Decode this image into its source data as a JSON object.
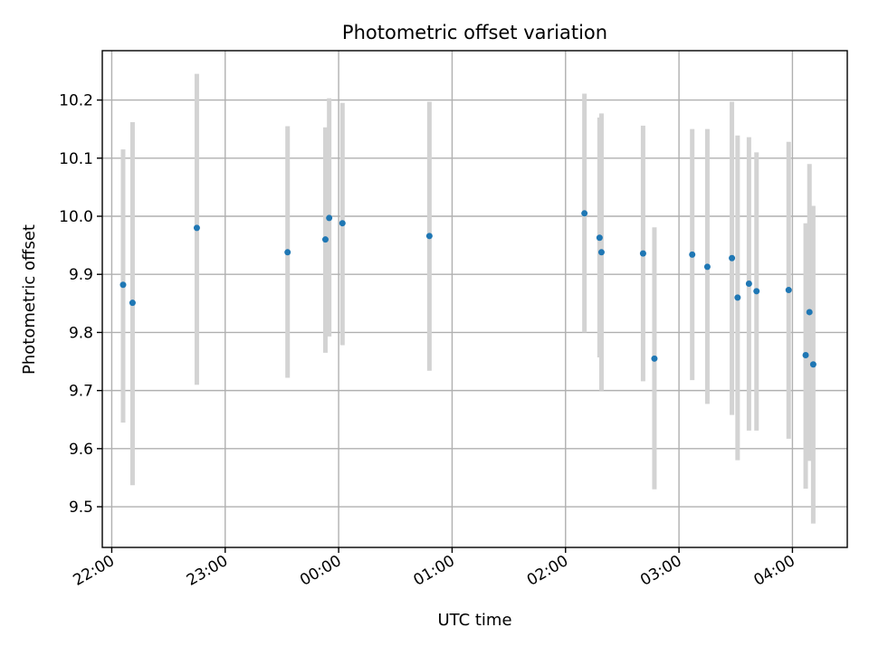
{
  "chart_data": {
    "type": "scatter",
    "title": "Photometric offset variation",
    "xlabel": "UTC time",
    "ylabel": "Photometric offset",
    "x_is_time": true,
    "xlim": [
      "21:55",
      "04:29"
    ],
    "ylim": [
      9.43,
      10.285
    ],
    "xticks": [
      "22:00",
      "23:00",
      "00:00",
      "01:00",
      "02:00",
      "03:00",
      "04:00"
    ],
    "yticks": [
      "9.5",
      "9.6",
      "9.7",
      "9.8",
      "9.9",
      "10.0",
      "10.1",
      "10.2"
    ],
    "grid": true,
    "colors": {
      "point": "#1f77b4",
      "errorbar": "#d3d3d3"
    },
    "points": [
      {
        "x": "22:06",
        "y": 9.882,
        "ylow": 9.645,
        "yhigh": 10.115
      },
      {
        "x": "22:11",
        "y": 9.851,
        "ylow": 9.537,
        "yhigh": 10.162
      },
      {
        "x": "22:45",
        "y": 9.98,
        "ylow": 9.71,
        "yhigh": 10.245
      },
      {
        "x": "23:33",
        "y": 9.938,
        "ylow": 9.722,
        "yhigh": 10.155
      },
      {
        "x": "23:53",
        "y": 9.96,
        "ylow": 9.765,
        "yhigh": 10.153
      },
      {
        "x": "23:55",
        "y": 9.997,
        "ylow": 9.793,
        "yhigh": 10.203
      },
      {
        "x": "00:02",
        "y": 9.988,
        "ylow": 9.778,
        "yhigh": 10.195
      },
      {
        "x": "00:48",
        "y": 9.966,
        "ylow": 9.734,
        "yhigh": 10.197
      },
      {
        "x": "02:10",
        "y": 10.005,
        "ylow": 9.8,
        "yhigh": 10.211
      },
      {
        "x": "02:18",
        "y": 9.963,
        "ylow": 9.757,
        "yhigh": 10.17
      },
      {
        "x": "02:19",
        "y": 9.938,
        "ylow": 9.7,
        "yhigh": 10.177
      },
      {
        "x": "02:41",
        "y": 9.936,
        "ylow": 9.716,
        "yhigh": 10.156
      },
      {
        "x": "02:47",
        "y": 9.755,
        "ylow": 9.53,
        "yhigh": 9.981
      },
      {
        "x": "03:07",
        "y": 9.934,
        "ylow": 9.718,
        "yhigh": 10.15
      },
      {
        "x": "03:15",
        "y": 9.913,
        "ylow": 9.677,
        "yhigh": 10.15
      },
      {
        "x": "03:28",
        "y": 9.928,
        "ylow": 9.658,
        "yhigh": 10.197
      },
      {
        "x": "03:31",
        "y": 9.86,
        "ylow": 9.58,
        "yhigh": 10.139
      },
      {
        "x": "03:37",
        "y": 9.884,
        "ylow": 9.631,
        "yhigh": 10.136
      },
      {
        "x": "03:41",
        "y": 9.871,
        "ylow": 9.631,
        "yhigh": 10.11
      },
      {
        "x": "03:58",
        "y": 9.873,
        "ylow": 9.617,
        "yhigh": 10.128
      },
      {
        "x": "04:07",
        "y": 9.761,
        "ylow": 9.531,
        "yhigh": 9.988
      },
      {
        "x": "04:09",
        "y": 9.835,
        "ylow": 9.579,
        "yhigh": 10.09
      },
      {
        "x": "04:11",
        "y": 9.745,
        "ylow": 9.471,
        "yhigh": 10.018
      }
    ]
  }
}
